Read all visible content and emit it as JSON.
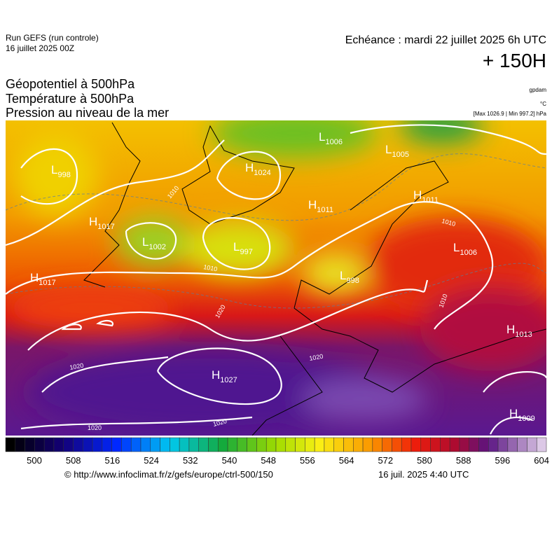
{
  "header": {
    "run": "Run GEFS (run controle)",
    "run_date": "16 juillet 2025 00Z",
    "valid": "Echéance : mardi 22 juillet 2025 6h UTC",
    "lead": "+ 150H",
    "fields": [
      "Géopotentiel à 500hPa",
      "Température à 500hPa",
      "Pression au niveau de la mer"
    ],
    "units": [
      "gpdam",
      "°C",
      "[Max 1026.9 | Min 997.2] hPa"
    ]
  },
  "map": {
    "centers": [
      {
        "letter": "L",
        "value": "998"
      },
      {
        "letter": "H",
        "value": "1024"
      },
      {
        "letter": "L",
        "value": "1006"
      },
      {
        "letter": "L",
        "value": "1005"
      },
      {
        "letter": "H",
        "value": "1011"
      },
      {
        "letter": "H",
        "value": "1011"
      },
      {
        "letter": "H",
        "value": "1017"
      },
      {
        "letter": "L",
        "value": "1002"
      },
      {
        "letter": "L",
        "value": "997"
      },
      {
        "letter": "L",
        "value": "1006"
      },
      {
        "letter": "H",
        "value": "1017"
      },
      {
        "letter": "L",
        "value": "998"
      },
      {
        "letter": "H",
        "value": "1013"
      },
      {
        "letter": "H",
        "value": "1027"
      },
      {
        "letter": "H",
        "value": "1009"
      }
    ],
    "isobar_labels": [
      "1010",
      "1010",
      "1010",
      "1010",
      "1020",
      "1020",
      "1020",
      "1020",
      "1020"
    ]
  },
  "colorbar": {
    "labels": [
      500,
      508,
      516,
      524,
      532,
      540,
      548,
      556,
      564,
      572,
      580,
      588,
      596,
      604
    ]
  },
  "footer": {
    "source": "© http://www.infoclimat.fr/z/gefs/europe/ctrl-500/150",
    "generated": "16 juil. 2025  4:40 UTC"
  }
}
